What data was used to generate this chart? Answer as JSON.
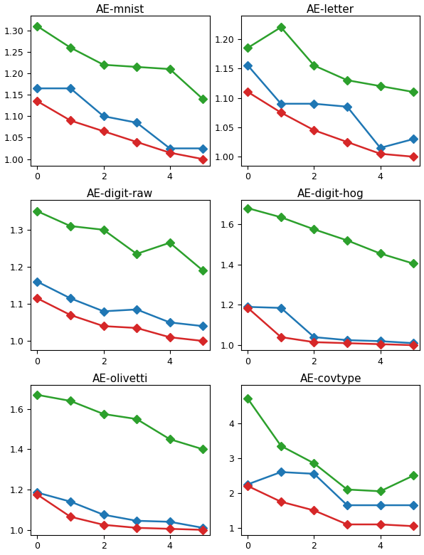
{
  "subplots": [
    {
      "title": "AE-mnist",
      "x": [
        0,
        1,
        2,
        3,
        4,
        5
      ],
      "green": [
        1.31,
        1.26,
        1.22,
        1.215,
        1.21,
        1.14
      ],
      "blue": [
        1.165,
        1.165,
        1.1,
        1.085,
        1.025,
        1.025
      ],
      "red": [
        1.135,
        1.09,
        1.065,
        1.04,
        1.015,
        1.0
      ],
      "ylim": [
        0.985,
        1.335
      ],
      "yticks": [
        1.0,
        1.05,
        1.1,
        1.15,
        1.2,
        1.25,
        1.3
      ]
    },
    {
      "title": "AE-letter",
      "x": [
        0,
        1,
        2,
        3,
        4,
        5
      ],
      "green": [
        1.185,
        1.22,
        1.155,
        1.13,
        1.12,
        1.11
      ],
      "blue": [
        1.155,
        1.09,
        1.09,
        1.085,
        1.015,
        1.03
      ],
      "red": [
        1.11,
        1.075,
        1.045,
        1.025,
        1.005,
        1.0
      ],
      "ylim": [
        0.985,
        1.24
      ],
      "yticks": [
        1.0,
        1.05,
        1.1,
        1.15,
        1.2
      ]
    },
    {
      "title": "AE-digit-raw",
      "x": [
        0,
        1,
        2,
        3,
        4,
        5
      ],
      "green": [
        1.35,
        1.31,
        1.3,
        1.235,
        1.265,
        1.19
      ],
      "blue": [
        1.16,
        1.115,
        1.08,
        1.085,
        1.05,
        1.04
      ],
      "red": [
        1.115,
        1.07,
        1.04,
        1.035,
        1.01,
        1.0
      ],
      "ylim": [
        0.975,
        1.38
      ],
      "yticks": [
        1.0,
        1.1,
        1.2,
        1.3
      ]
    },
    {
      "title": "AE-digit-hog",
      "x": [
        0,
        1,
        2,
        3,
        4,
        5
      ],
      "green": [
        1.68,
        1.635,
        1.575,
        1.52,
        1.455,
        1.405
      ],
      "blue": [
        1.19,
        1.185,
        1.04,
        1.025,
        1.02,
        1.01
      ],
      "red": [
        1.185,
        1.04,
        1.015,
        1.01,
        1.005,
        1.0
      ],
      "ylim": [
        0.975,
        1.72
      ],
      "yticks": [
        1.0,
        1.2,
        1.4,
        1.6
      ]
    },
    {
      "title": "AE-olivetti",
      "x": [
        0,
        1,
        2,
        3,
        4,
        5
      ],
      "green": [
        1.67,
        1.64,
        1.575,
        1.55,
        1.45,
        1.4
      ],
      "blue": [
        1.185,
        1.14,
        1.075,
        1.045,
        1.04,
        1.01
      ],
      "red": [
        1.175,
        1.065,
        1.025,
        1.01,
        1.005,
        1.0
      ],
      "ylim": [
        0.975,
        1.72
      ],
      "yticks": [
        1.0,
        1.2,
        1.4,
        1.6
      ]
    },
    {
      "title": "AE-covtype",
      "x": [
        0,
        1,
        2,
        3,
        4,
        5
      ],
      "green": [
        4.7,
        3.35,
        2.85,
        2.1,
        2.05,
        2.5
      ],
      "blue": [
        2.25,
        2.6,
        2.55,
        1.65,
        1.65,
        1.65
      ],
      "red": [
        2.2,
        1.75,
        1.5,
        1.1,
        1.1,
        1.05
      ],
      "ylim": [
        0.8,
        5.1
      ],
      "yticks": [
        1,
        2,
        3,
        4
      ]
    }
  ],
  "green_color": "#2ca02c",
  "blue_color": "#1f77b4",
  "red_color": "#d62728",
  "marker": "D",
  "markersize": 6,
  "linewidth": 1.8,
  "xticks": [
    0,
    2,
    4
  ],
  "xlim": [
    -0.2,
    5.2
  ]
}
